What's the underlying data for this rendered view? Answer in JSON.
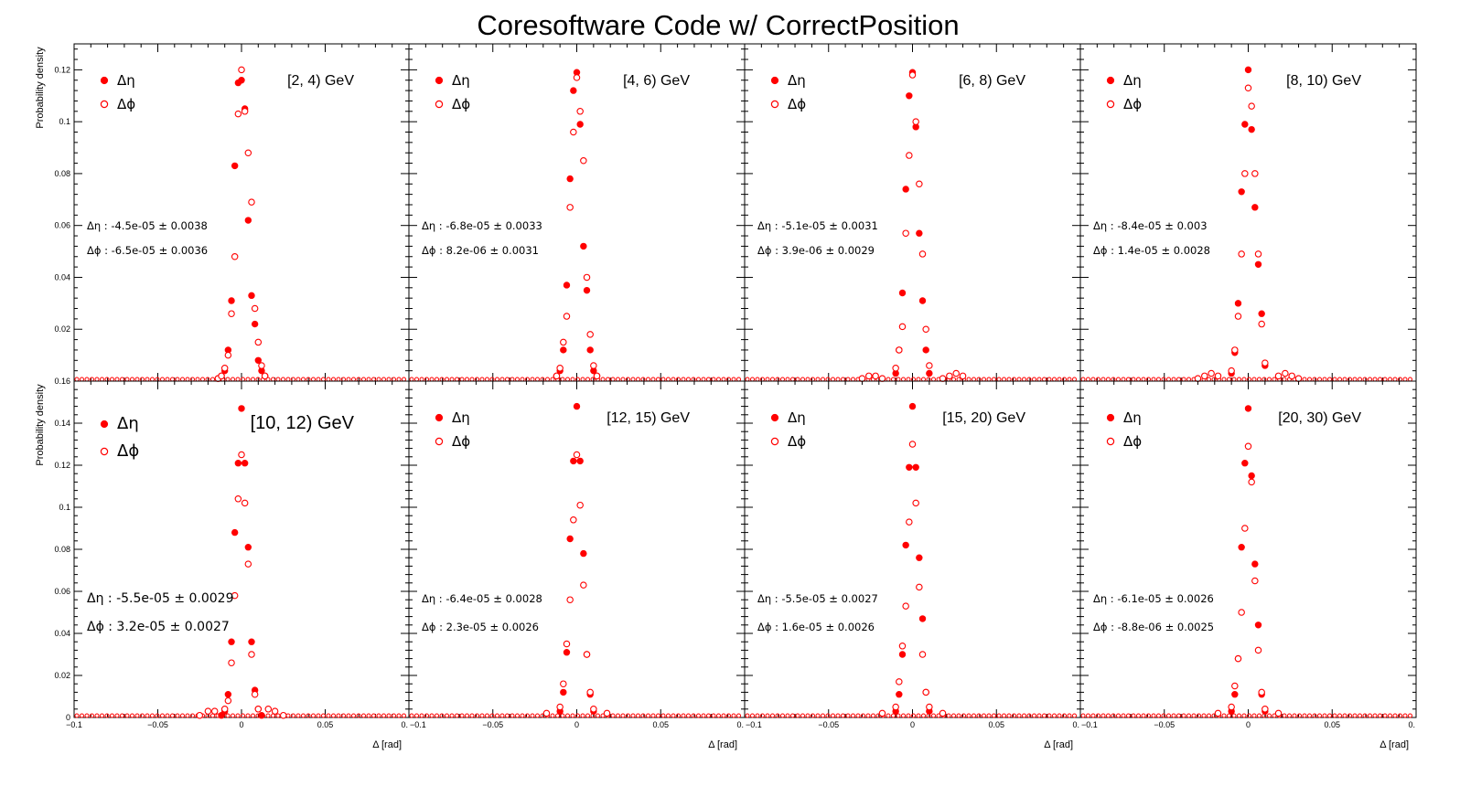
{
  "title": "Coresoftware Code w/ CorrectPosition",
  "colors": {
    "marker": "#ff0000",
    "axis": "#000000",
    "background": "#ffffff"
  },
  "chart_data": [
    {
      "type": "scatter",
      "bin": "[2, 4) GeV",
      "xlim": [
        -0.1,
        0.1
      ],
      "ylim": [
        0,
        0.13
      ],
      "xticks": [
        "−0.1",
        "−0.05",
        "0",
        "0.05",
        "0."
      ],
      "yticks": [
        "0.02",
        "0.04",
        "0.06",
        "0.08",
        "0.1",
        "0.12"
      ],
      "ylabel": "Probability density",
      "xlabel": "",
      "stats": {
        "deta": "Δη : -4.5e-05 ± 0.0038",
        "dphi": "Δϕ : -6.5e-05 ± 0.0036"
      },
      "series": [
        {
          "name": "Δη",
          "marker": "filled",
          "x": [
            -0.014,
            -0.012,
            -0.01,
            -0.008,
            -0.006,
            -0.004,
            -0.002,
            0,
            0.002,
            0.004,
            0.006,
            0.008,
            0.01,
            0.012,
            0.014
          ],
          "y": [
            0.001,
            0.002,
            0.004,
            0.012,
            0.031,
            0.083,
            0.115,
            0.116,
            0.105,
            0.062,
            0.033,
            0.022,
            0.008,
            0.004,
            0.002
          ]
        },
        {
          "name": "Δϕ",
          "marker": "open",
          "x": [
            -0.014,
            -0.012,
            -0.01,
            -0.008,
            -0.006,
            -0.004,
            -0.002,
            0,
            0.002,
            0.004,
            0.006,
            0.008,
            0.01,
            0.012,
            0.014
          ],
          "y": [
            0.001,
            0.002,
            0.005,
            0.01,
            0.026,
            0.048,
            0.103,
            0.12,
            0.104,
            0.088,
            0.069,
            0.028,
            0.015,
            0.006,
            0.002
          ]
        }
      ]
    },
    {
      "type": "scatter",
      "bin": "[4, 6) GeV",
      "xlim": [
        -0.1,
        0.1
      ],
      "ylim": [
        0,
        0.13
      ],
      "xticks": [
        "−0.1",
        "−0.05",
        "0",
        "0.05",
        "0."
      ],
      "yticks": [],
      "ylabel": "",
      "xlabel": "",
      "stats": {
        "deta": "Δη : -6.8e-05 ± 0.0033",
        "dphi": "Δϕ : 8.2e-06 ± 0.0031"
      },
      "series": [
        {
          "name": "Δη",
          "marker": "filled",
          "x": [
            -0.012,
            -0.01,
            -0.008,
            -0.006,
            -0.004,
            -0.002,
            0,
            0.002,
            0.004,
            0.006,
            0.008,
            0.01,
            0.012
          ],
          "y": [
            0.002,
            0.004,
            0.012,
            0.037,
            0.078,
            0.112,
            0.119,
            0.099,
            0.052,
            0.035,
            0.012,
            0.004,
            0.002
          ]
        },
        {
          "name": "Δϕ",
          "marker": "open",
          "x": [
            -0.012,
            -0.01,
            -0.008,
            -0.006,
            -0.004,
            -0.002,
            0,
            0.002,
            0.004,
            0.006,
            0.008,
            0.01,
            0.012
          ],
          "y": [
            0.002,
            0.005,
            0.015,
            0.025,
            0.067,
            0.096,
            0.117,
            0.104,
            0.085,
            0.04,
            0.018,
            0.006,
            0.002
          ]
        }
      ]
    },
    {
      "type": "scatter",
      "bin": "[6, 8) GeV",
      "xlim": [
        -0.1,
        0.1
      ],
      "ylim": [
        0,
        0.13
      ],
      "xticks": [
        "−0.1",
        "−0.05",
        "0",
        "0.05",
        "0."
      ],
      "yticks": [],
      "ylabel": "",
      "xlabel": "",
      "stats": {
        "deta": "Δη : -5.1e-05 ± 0.0031",
        "dphi": "Δϕ : 3.9e-06 ± 0.0029"
      },
      "series": [
        {
          "name": "Δη",
          "marker": "filled",
          "x": [
            -0.01,
            -0.008,
            -0.006,
            -0.004,
            -0.002,
            0,
            0.002,
            0.004,
            0.006,
            0.008,
            0.01
          ],
          "y": [
            0.003,
            0.012,
            0.034,
            0.074,
            0.11,
            0.119,
            0.098,
            0.057,
            0.031,
            0.012,
            0.003
          ]
        },
        {
          "name": "Δϕ",
          "marker": "open",
          "x": [
            -0.03,
            -0.026,
            -0.022,
            -0.018,
            -0.01,
            -0.008,
            -0.006,
            -0.004,
            -0.002,
            0,
            0.002,
            0.004,
            0.006,
            0.008,
            0.01,
            0.018,
            0.022,
            0.026,
            0.03
          ],
          "y": [
            0.001,
            0.002,
            0.002,
            0.001,
            0.005,
            0.012,
            0.021,
            0.057,
            0.087,
            0.118,
            0.1,
            0.076,
            0.049,
            0.02,
            0.006,
            0.001,
            0.002,
            0.003,
            0.002
          ]
        }
      ]
    },
    {
      "type": "scatter",
      "bin": "[8, 10) GeV",
      "xlim": [
        -0.1,
        0.1
      ],
      "ylim": [
        0,
        0.13
      ],
      "xticks": [
        "−0.1",
        "−0.05",
        "0",
        "0.05",
        "0."
      ],
      "yticks": [],
      "ylabel": "",
      "xlabel": "",
      "stats": {
        "deta": "Δη : -8.4e-05 ± 0.003",
        "dphi": "Δϕ : 1.4e-05 ± 0.0028"
      },
      "series": [
        {
          "name": "Δη",
          "marker": "filled",
          "x": [
            -0.01,
            -0.008,
            -0.006,
            -0.004,
            -0.002,
            0,
            0.002,
            0.004,
            0.006,
            0.008,
            0.01
          ],
          "y": [
            0.003,
            0.011,
            0.03,
            0.073,
            0.099,
            0.12,
            0.097,
            0.067,
            0.045,
            0.026,
            0.006
          ]
        },
        {
          "name": "Δϕ",
          "marker": "open",
          "x": [
            -0.03,
            -0.026,
            -0.022,
            -0.018,
            -0.01,
            -0.008,
            -0.006,
            -0.004,
            -0.002,
            0,
            0.002,
            0.004,
            0.006,
            0.008,
            0.01,
            0.018,
            0.022,
            0.026,
            0.03
          ],
          "y": [
            0.001,
            0.002,
            0.003,
            0.002,
            0.004,
            0.012,
            0.025,
            0.049,
            0.08,
            0.113,
            0.106,
            0.08,
            0.049,
            0.022,
            0.007,
            0.002,
            0.003,
            0.002,
            0.001
          ]
        }
      ]
    },
    {
      "type": "scatter",
      "bin": "[10, 12) GeV",
      "xlim": [
        -0.1,
        0.1
      ],
      "ylim": [
        0,
        0.16
      ],
      "xticks": [
        "−0.1",
        "−0.05",
        "0",
        "0.05",
        "0."
      ],
      "yticks": [
        "0",
        "0.02",
        "0.04",
        "0.06",
        "0.08",
        "0.1",
        "0.12",
        "0.14",
        "0.16"
      ],
      "ylabel": "Probability density",
      "xlabel": "Δ [rad]",
      "stats": {
        "deta": "Δη : -5.5e-05 ± 0.0029",
        "dphi": "Δϕ : 3.2e-05 ± 0.0027"
      },
      "series": [
        {
          "name": "Δη",
          "marker": "filled",
          "x": [
            -0.012,
            -0.01,
            -0.008,
            -0.006,
            -0.004,
            -0.002,
            0,
            0.002,
            0.004,
            0.006,
            0.008,
            0.01,
            0.012
          ],
          "y": [
            0.001,
            0.003,
            0.011,
            0.036,
            0.088,
            0.121,
            0.147,
            0.121,
            0.081,
            0.036,
            0.013,
            0.004,
            0.001
          ]
        },
        {
          "name": "Δϕ",
          "marker": "open",
          "x": [
            -0.025,
            -0.02,
            -0.016,
            -0.01,
            -0.008,
            -0.006,
            -0.004,
            -0.002,
            0,
            0.002,
            0.004,
            0.006,
            0.008,
            0.01,
            0.016,
            0.02,
            0.025
          ],
          "y": [
            0.001,
            0.003,
            0.003,
            0.004,
            0.008,
            0.026,
            0.058,
            0.104,
            0.125,
            0.102,
            0.073,
            0.03,
            0.011,
            0.004,
            0.004,
            0.003,
            0.001
          ]
        }
      ]
    },
    {
      "type": "scatter",
      "bin": "[12, 15) GeV",
      "xlim": [
        -0.1,
        0.1
      ],
      "ylim": [
        0,
        0.16
      ],
      "xticks": [
        "−0.1",
        "−0.05",
        "0",
        "0.05",
        "0."
      ],
      "yticks": [],
      "ylabel": "",
      "xlabel": "Δ [rad]",
      "stats": {
        "deta": "Δη : -6.4e-05 ± 0.0028",
        "dphi": "Δϕ : 2.3e-05 ± 0.0026"
      },
      "series": [
        {
          "name": "Δη",
          "marker": "filled",
          "x": [
            -0.01,
            -0.008,
            -0.006,
            -0.004,
            -0.002,
            0,
            0.002,
            0.004,
            0.006,
            0.008,
            0.01
          ],
          "y": [
            0.003,
            0.012,
            0.031,
            0.085,
            0.122,
            0.148,
            0.122,
            0.078,
            0.03,
            0.011,
            0.003
          ]
        },
        {
          "name": "Δϕ",
          "marker": "open",
          "x": [
            -0.018,
            -0.01,
            -0.008,
            -0.006,
            -0.004,
            -0.002,
            0,
            0.002,
            0.004,
            0.006,
            0.008,
            0.01,
            0.018
          ],
          "y": [
            0.002,
            0.005,
            0.016,
            0.035,
            0.056,
            0.094,
            0.125,
            0.101,
            0.063,
            0.03,
            0.012,
            0.004,
            0.002
          ]
        }
      ]
    },
    {
      "type": "scatter",
      "bin": "[15, 20) GeV",
      "xlim": [
        -0.1,
        0.1
      ],
      "ylim": [
        0,
        0.16
      ],
      "xticks": [
        "−0.1",
        "−0.05",
        "0",
        "0.05",
        "0."
      ],
      "yticks": [],
      "ylabel": "",
      "xlabel": "Δ [rad]",
      "stats": {
        "deta": "Δη : -5.5e-05 ± 0.0027",
        "dphi": "Δϕ : 1.6e-05 ± 0.0026"
      },
      "series": [
        {
          "name": "Δη",
          "marker": "filled",
          "x": [
            -0.01,
            -0.008,
            -0.006,
            -0.004,
            -0.002,
            0,
            0.002,
            0.004,
            0.006,
            0.008,
            0.01
          ],
          "y": [
            0.003,
            0.011,
            0.03,
            0.082,
            0.119,
            0.148,
            0.119,
            0.076,
            0.047,
            0.012,
            0.003
          ]
        },
        {
          "name": "Δϕ",
          "marker": "open",
          "x": [
            -0.018,
            -0.01,
            -0.008,
            -0.006,
            -0.004,
            -0.002,
            0,
            0.002,
            0.004,
            0.006,
            0.008,
            0.01,
            0.018
          ],
          "y": [
            0.002,
            0.005,
            0.017,
            0.034,
            0.053,
            0.093,
            0.13,
            0.102,
            0.062,
            0.03,
            0.012,
            0.005,
            0.002
          ]
        }
      ]
    },
    {
      "type": "scatter",
      "bin": "[20, 30) GeV",
      "xlim": [
        -0.1,
        0.1
      ],
      "ylim": [
        0,
        0.16
      ],
      "xticks": [
        "−0.1",
        "−0.05",
        "0",
        "0.05",
        "0."
      ],
      "yticks": [],
      "ylabel": "",
      "xlabel": "Δ [rad]",
      "stats": {
        "deta": "Δη : -6.1e-05 ± 0.0026",
        "dphi": "Δϕ : -8.8e-06 ± 0.0025"
      },
      "series": [
        {
          "name": "Δη",
          "marker": "filled",
          "x": [
            -0.01,
            -0.008,
            -0.006,
            -0.004,
            -0.002,
            0,
            0.002,
            0.004,
            0.006,
            0.008,
            0.01
          ],
          "y": [
            0.003,
            0.011,
            0.028,
            0.081,
            0.121,
            0.147,
            0.115,
            0.073,
            0.044,
            0.011,
            0.003
          ]
        },
        {
          "name": "Δϕ",
          "marker": "open",
          "x": [
            -0.018,
            -0.01,
            -0.008,
            -0.006,
            -0.004,
            -0.002,
            0,
            0.002,
            0.004,
            0.006,
            0.008,
            0.01,
            0.018
          ],
          "y": [
            0.002,
            0.005,
            0.015,
            0.028,
            0.05,
            0.09,
            0.129,
            0.112,
            0.065,
            0.032,
            0.012,
            0.004,
            0.002
          ]
        }
      ]
    }
  ]
}
